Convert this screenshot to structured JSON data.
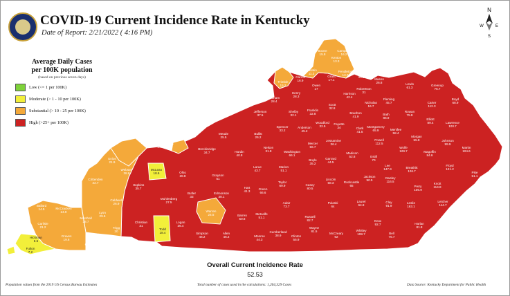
{
  "header": {
    "title": "COVID-19 Current Incidence Rate in Kentucky",
    "date": "Date of Report: 2/21/2022  ( 4:16 PM)"
  },
  "legend": {
    "title_line1": "Average Daily Cases",
    "title_line2": "per 100K population",
    "note": "(based on previous seven days)",
    "items": [
      {
        "label": "Low (<= 1 per 100K)",
        "color": "#7ed23a"
      },
      {
        "label": "Moderate (> 1 - 10 per 100K)",
        "color": "#f2ef3a"
      },
      {
        "label": "Substantial (> 10 - 25 per 100K)",
        "color": "#f4a93a"
      },
      {
        "label": "High (>25+ per 100K)",
        "color": "#cc2222"
      }
    ]
  },
  "colors": {
    "high": "#cc2222",
    "substantial": "#f4a93a",
    "moderate": "#f2ef3a",
    "border": "#ffffff"
  },
  "counties": [
    {
      "name": "Boone",
      "value": "15.8"
    },
    {
      "name": "Kenton",
      "value": "13.3"
    },
    {
      "name": "Campbell",
      "value": "16.2"
    },
    {
      "name": "Gallatin",
      "value": "11.2"
    },
    {
      "name": "Carroll",
      "value": "16.9"
    },
    {
      "name": "Trimble",
      "value": "15.2"
    },
    {
      "name": "Owen",
      "value": "17"
    },
    {
      "name": "Grant",
      "value": "17.1"
    },
    {
      "name": "Pendleton",
      "value": "13.7"
    },
    {
      "name": "Bracken",
      "value": "35.1"
    },
    {
      "name": "Mason",
      "value": "26.8"
    },
    {
      "name": "Lewis",
      "value": "61.3"
    },
    {
      "name": "Greenup",
      "value": "75.7"
    },
    {
      "name": "Boyd",
      "value": "68.9"
    },
    {
      "name": "Henry",
      "value": "28.3"
    },
    {
      "name": "Oldham",
      "value": "28.4"
    },
    {
      "name": "Harrison",
      "value": "42.4"
    },
    {
      "name": "Robertson",
      "value": "31"
    },
    {
      "name": "Fleming",
      "value": "45.7"
    },
    {
      "name": "Carter",
      "value": "112.3"
    },
    {
      "name": "Scott",
      "value": "32.8"
    },
    {
      "name": "Shelby",
      "value": "32.1"
    },
    {
      "name": "Franklin",
      "value": "32.8"
    },
    {
      "name": "Nicholas",
      "value": "16.7"
    },
    {
      "name": "Rowan",
      "value": "75.8"
    },
    {
      "name": "Jefferson",
      "value": "37.5"
    },
    {
      "name": "Bourbon",
      "value": "41.9"
    },
    {
      "name": "Bath",
      "value": "86.9"
    },
    {
      "name": "Elliott",
      "value": "89.4"
    },
    {
      "name": "Lawrence",
      "value": "100.7"
    },
    {
      "name": "Woodford",
      "value": "32.5"
    },
    {
      "name": "Fayette",
      "value": "34"
    },
    {
      "name": "Clark",
      "value": "41.5"
    },
    {
      "name": "Montgomery",
      "value": "65.9"
    },
    {
      "name": "Menifee",
      "value": "58.4"
    },
    {
      "name": "Morgan",
      "value": "55.8"
    },
    {
      "name": "Johnson",
      "value": "99.9"
    },
    {
      "name": "Martin",
      "value": "104.6"
    },
    {
      "name": "Spencer",
      "value": "33.2"
    },
    {
      "name": "Anderson",
      "value": "45.2"
    },
    {
      "name": "Bullitt",
      "value": "26.2"
    },
    {
      "name": "Jessamine",
      "value": "36.4"
    },
    {
      "name": "Powell",
      "value": "112.5"
    },
    {
      "name": "Wolfe",
      "value": "129.7"
    },
    {
      "name": "Magoffin",
      "value": "84.6"
    },
    {
      "name": "Floyd",
      "value": "121.2"
    },
    {
      "name": "Pike",
      "value": "51.1"
    },
    {
      "name": "Nelson",
      "value": "31.8"
    },
    {
      "name": "Washington",
      "value": "66.1"
    },
    {
      "name": "Mercer",
      "value": "56.7"
    },
    {
      "name": "Boyle",
      "value": "35.2"
    },
    {
      "name": "Garrard",
      "value": "44.5"
    },
    {
      "name": "Madison",
      "value": "52.8"
    },
    {
      "name": "Estill",
      "value": "70"
    },
    {
      "name": "Lee",
      "value": "147.9"
    },
    {
      "name": "Breathitt",
      "value": "126.7"
    },
    {
      "name": "Knott",
      "value": "114.8"
    },
    {
      "name": "Owsley",
      "value": "116.5"
    },
    {
      "name": "Jackson",
      "value": "90.5"
    },
    {
      "name": "Perry",
      "value": "106.9"
    },
    {
      "name": "Letcher",
      "value": "114.7"
    },
    {
      "name": "Hardin",
      "value": "40.8"
    },
    {
      "name": "Larue",
      "value": "43.7"
    },
    {
      "name": "Marion",
      "value": "51.1"
    },
    {
      "name": "Lincoln",
      "value": "58.3"
    },
    {
      "name": "Rockcastle",
      "value": "65"
    },
    {
      "name": "Clay",
      "value": "91.9"
    },
    {
      "name": "Leslie",
      "value": "163.1"
    },
    {
      "name": "Harlan",
      "value": "81.8"
    },
    {
      "name": "Meade",
      "value": "25.5"
    },
    {
      "name": "Breckinridge",
      "value": "34.7"
    },
    {
      "name": "Hancock",
      "value": "23.6"
    },
    {
      "name": "Grayson",
      "value": "51"
    },
    {
      "name": "Taylor",
      "value": "69.9"
    },
    {
      "name": "Casey",
      "value": "80.5"
    },
    {
      "name": "Pulaski",
      "value": "64"
    },
    {
      "name": "Laurel",
      "value": "64.8"
    },
    {
      "name": "Knox",
      "value": "92.7"
    },
    {
      "name": "Bell",
      "value": "75.7"
    },
    {
      "name": "Whitley",
      "value": "108.7"
    },
    {
      "name": "McCreary",
      "value": "92"
    },
    {
      "name": "Wayne",
      "value": "81.5"
    },
    {
      "name": "Russell",
      "value": "82.7"
    },
    {
      "name": "Clinton",
      "value": "55.9"
    },
    {
      "name": "Cumberland",
      "value": "38.9"
    },
    {
      "name": "Adair",
      "value": "73.7"
    },
    {
      "name": "Green",
      "value": "66.6"
    },
    {
      "name": "Hart",
      "value": "41.3"
    },
    {
      "name": "Edmonson",
      "value": "38.1"
    },
    {
      "name": "Metcalfe",
      "value": "51.1"
    },
    {
      "name": "Monroe",
      "value": "44.3"
    },
    {
      "name": "Barren",
      "value": "50.8"
    },
    {
      "name": "Allen",
      "value": "46.2"
    },
    {
      "name": "Simpson",
      "value": "46.2"
    },
    {
      "name": "Warren",
      "value": "24.5"
    },
    {
      "name": "Butler",
      "value": "33"
    },
    {
      "name": "Ohio",
      "value": "28.8"
    },
    {
      "name": "Daviess",
      "value": "35.7"
    },
    {
      "name": "Henderson",
      "value": "25"
    },
    {
      "name": "McLean",
      "value": "18.6"
    },
    {
      "name": "Muhlenberg",
      "value": "27.5"
    },
    {
      "name": "Logan",
      "value": "36.4"
    },
    {
      "name": "Todd",
      "value": "18.4"
    },
    {
      "name": "Union",
      "value": "21.9"
    },
    {
      "name": "Webster",
      "value": "38.6"
    },
    {
      "name": "Hopkins",
      "value": "35.7"
    },
    {
      "name": "Christian",
      "value": "31"
    },
    {
      "name": "Crittenden",
      "value": "22.7"
    },
    {
      "name": "Livingston",
      "value": "40.6"
    },
    {
      "name": "Caldwell",
      "value": "26.9"
    },
    {
      "name": "Lyon",
      "value": "29.6"
    },
    {
      "name": "Trigg",
      "value": "20"
    },
    {
      "name": "Ballard",
      "value": "14.5"
    },
    {
      "name": "McCracken",
      "value": "24.9"
    },
    {
      "name": "Marshall",
      "value": "28.7"
    },
    {
      "name": "Carlisle",
      "value": "21.2"
    },
    {
      "name": "Graves",
      "value": "19.6"
    },
    {
      "name": "Calloway",
      "value": "20.9"
    },
    {
      "name": "Hickman",
      "value": "6.5"
    },
    {
      "name": "Fulton",
      "value": "7.2"
    }
  ],
  "overall": {
    "label": "Overall Current Incidence Rate",
    "value": "52.53"
  },
  "footer": {
    "left": "Population values from the 2019 US Census Bureau Estimates",
    "center": "Total number of cases used in the calculations: 1,264,329 Cases",
    "right": "Data Source: Kentucky Department for Public Health"
  }
}
